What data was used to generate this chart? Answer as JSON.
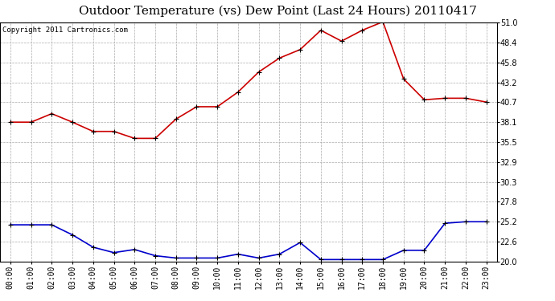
{
  "title": "Outdoor Temperature (vs) Dew Point (Last 24 Hours) 20110417",
  "copyright": "Copyright 2011 Cartronics.com",
  "hours": [
    "00:00",
    "01:00",
    "02:00",
    "03:00",
    "04:00",
    "05:00",
    "06:00",
    "07:00",
    "08:00",
    "09:00",
    "10:00",
    "11:00",
    "12:00",
    "13:00",
    "14:00",
    "15:00",
    "16:00",
    "17:00",
    "18:00",
    "19:00",
    "20:00",
    "21:00",
    "22:00",
    "23:00"
  ],
  "temp": [
    38.1,
    38.1,
    39.2,
    38.1,
    36.9,
    36.9,
    36.0,
    36.0,
    38.5,
    40.1,
    40.1,
    42.0,
    44.6,
    46.4,
    47.5,
    50.0,
    48.6,
    50.0,
    51.1,
    43.7,
    41.0,
    41.2,
    41.2,
    40.7
  ],
  "dew": [
    24.8,
    24.8,
    24.8,
    23.5,
    21.9,
    21.2,
    21.6,
    20.8,
    20.5,
    20.5,
    20.5,
    21.0,
    20.5,
    21.0,
    22.5,
    20.3,
    20.3,
    20.3,
    20.3,
    21.5,
    21.5,
    25.0,
    25.2,
    25.2
  ],
  "temp_color": "#cc0000",
  "dew_color": "#0000cc",
  "bg_color": "#ffffff",
  "plot_bg_color": "#ffffff",
  "grid_color": "#aaaaaa",
  "ylim": [
    20.0,
    51.0
  ],
  "yticks": [
    20.0,
    22.6,
    25.2,
    27.8,
    30.3,
    32.9,
    35.5,
    38.1,
    40.7,
    43.2,
    45.8,
    48.4,
    51.0
  ],
  "title_fontsize": 11,
  "copyright_fontsize": 6.5,
  "tick_fontsize": 7,
  "marker": "+",
  "marker_size": 4,
  "line_width": 1.2
}
